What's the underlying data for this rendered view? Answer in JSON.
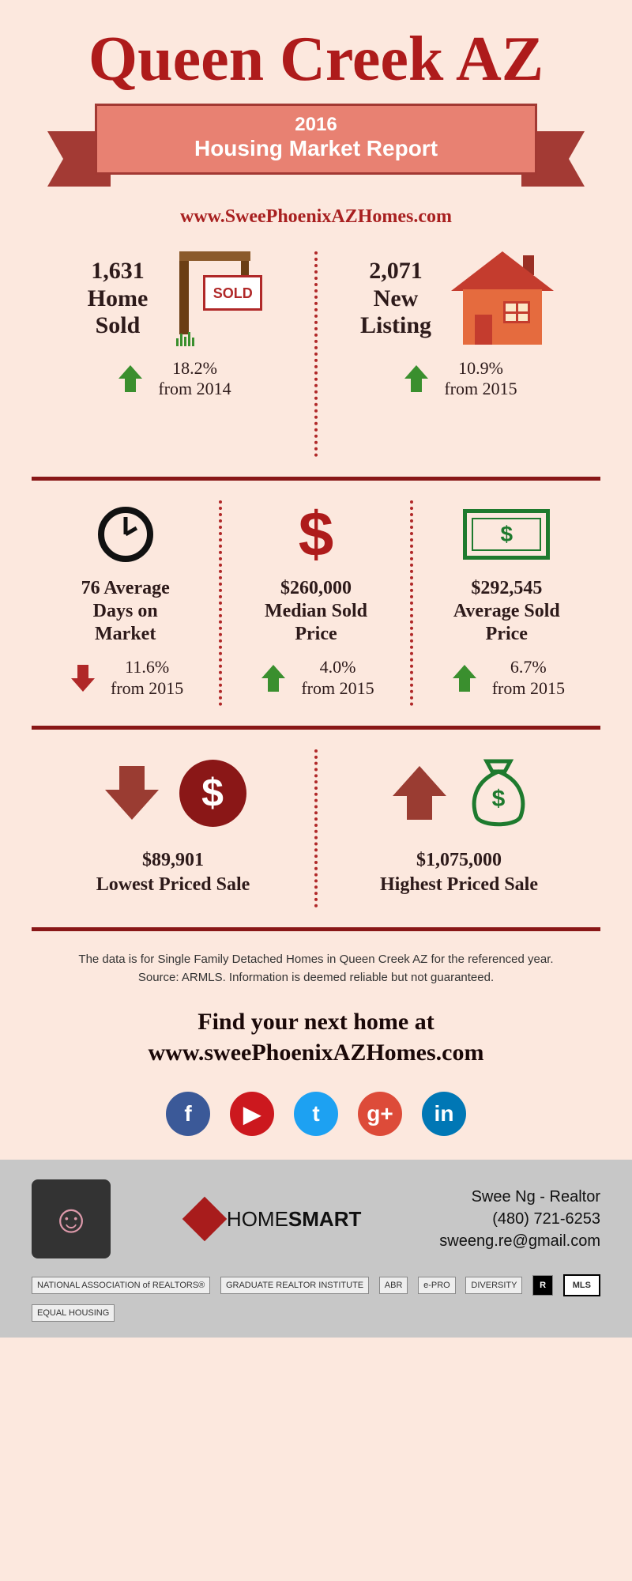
{
  "header": {
    "title": "Queen Creek AZ",
    "ribbon_year": "2016",
    "ribbon_subtitle": "Housing Market Report",
    "website": "www.SweePhoenixAZHomes.com"
  },
  "colors": {
    "bg": "#fce8de",
    "deep_red": "#ae1b1b",
    "dark_red": "#891717",
    "ribbon_face": "#e88172",
    "ribbon_border": "#a23933",
    "green_up": "#3a8f2e",
    "red_down": "#b02828",
    "text_dark": "#2d1a1a",
    "bill_green": "#1e7a2e",
    "coin_bg": "#8a1717",
    "arrow_brown": "#9a3c32",
    "footer_bg": "#c7c7c7"
  },
  "top_stats": {
    "sold": {
      "value": "1,631",
      "label_l1": "Home",
      "label_l2": "Sold",
      "sign_text": "SOLD",
      "change_pct": "18.2%",
      "change_from": "from 2014",
      "direction": "up"
    },
    "listings": {
      "value": "2,071",
      "label_l1": "New",
      "label_l2": "Listing",
      "change_pct": "10.9%",
      "change_from": "from 2015",
      "direction": "up"
    }
  },
  "mid_stats": [
    {
      "icon": "clock",
      "line1": "76 Average",
      "line2": "Days on",
      "line3": "Market",
      "change_pct": "11.6%",
      "change_from": "from 2015",
      "direction": "down"
    },
    {
      "icon": "dollar",
      "line1": "$260,000",
      "line2": "Median Sold",
      "line3": "Price",
      "change_pct": "4.0%",
      "change_from": "from 2015",
      "direction": "up"
    },
    {
      "icon": "bill",
      "line1": "$292,545",
      "line2": "Average Sold",
      "line3": "Price",
      "change_pct": "6.7%",
      "change_from": "from 2015",
      "direction": "up"
    }
  ],
  "price_extremes": {
    "low": {
      "value": "$89,901",
      "label": "Lowest Priced Sale"
    },
    "high": {
      "value": "$1,075,000",
      "label": "Highest Priced Sale"
    }
  },
  "footnote": {
    "l1": "The data is for Single Family Detached Homes in Queen Creek AZ for the referenced year.",
    "l2": "Source: ARMLS. Information is deemed reliable but not guaranteed."
  },
  "cta": {
    "l1": "Find your next home at",
    "l2": "www.sweePhoenixAZHomes.com"
  },
  "social": [
    {
      "name": "facebook",
      "glyph": "f",
      "bg": "#3b5998"
    },
    {
      "name": "youtube",
      "glyph": "▶",
      "bg": "#cc181e"
    },
    {
      "name": "twitter",
      "glyph": "t",
      "bg": "#1da1f2"
    },
    {
      "name": "googleplus",
      "glyph": "g+",
      "bg": "#dd4b39"
    },
    {
      "name": "linkedin",
      "glyph": "in",
      "bg": "#0077b5"
    }
  ],
  "footer": {
    "brand_l": "HOME",
    "brand_r": "SMART",
    "contact_name": "Swee Ng - Realtor",
    "contact_phone": "(480) 721-6253",
    "contact_email": "sweeng.re@gmail.com",
    "badges": [
      "NATIONAL ASSOCIATION of REALTORS®",
      "GRADUATE REALTOR INSTITUTE",
      "ABR",
      "e-PRO",
      "DIVERSITY",
      "R",
      "MLS",
      "EQUAL HOUSING"
    ]
  }
}
